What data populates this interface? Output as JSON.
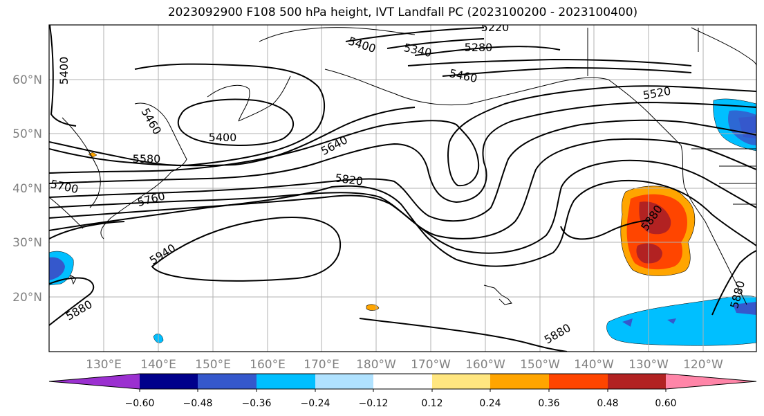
{
  "title": "2023092900 F108 500 hPa height, IVT Landfall PC (2023100200 - 2023100400)",
  "lat_labels": [
    "60°N",
    "50°N",
    "40°N",
    "30°N",
    "20°N"
  ],
  "lon_labels": [
    "130°E",
    "140°E",
    "150°E",
    "160°E",
    "170°E",
    "180°W",
    "170°W",
    "160°W",
    "150°W",
    "140°W",
    "130°W",
    "120°W"
  ],
  "contour_labels": [
    "5400",
    "5460",
    "5400",
    "5580",
    "5700",
    "5760",
    "5940",
    "5880",
    "5640",
    "5820",
    "5400",
    "5340",
    "5280",
    "5220",
    "5460",
    "5520",
    "5880",
    "5880",
    "5880"
  ],
  "colorbar": {
    "tick_labels": [
      "−0.60",
      "−0.48",
      "−0.36",
      "−0.24",
      "−0.12",
      "0.12",
      "0.24",
      "0.36",
      "0.48",
      "0.60"
    ],
    "colors": [
      "#9b30d0",
      "#00008b",
      "#3558cc",
      "#00bfff",
      "#b0e2ff",
      "#ffffff",
      "#ffe680",
      "#ffa500",
      "#ff4500",
      "#b22222",
      "#ff85a8"
    ]
  }
}
